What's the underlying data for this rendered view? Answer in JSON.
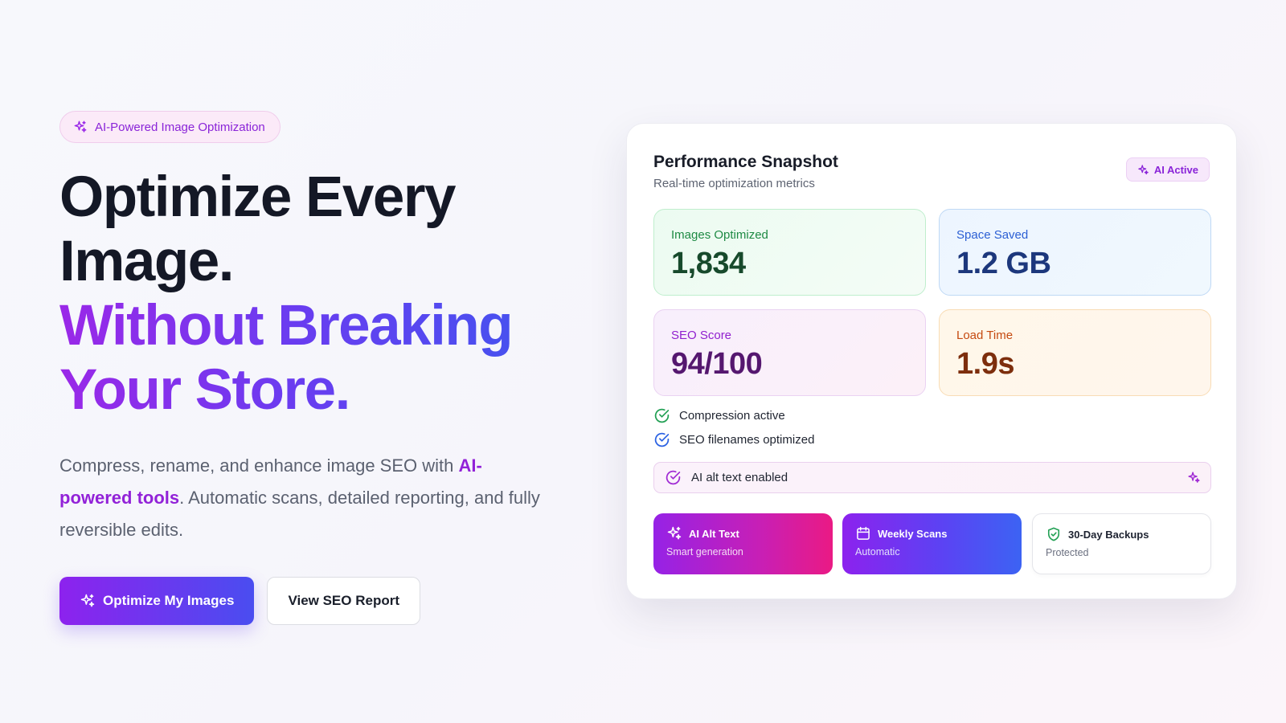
{
  "hero": {
    "badge_label": "AI-Powered Image Optimization",
    "headline_line1": "Optimize Every",
    "headline_line2": "Image.",
    "headline_line3": "Without Breaking",
    "headline_line4": "Your Store.",
    "subtext_before": "Compress, rename, and enhance image SEO with ",
    "subtext_highlight": "AI-powered tools",
    "subtext_after": ". Automatic scans, detailed reporting, and fully reversible edits.",
    "primary_button": "Optimize My Images",
    "secondary_button": "View SEO Report"
  },
  "snapshot": {
    "title": "Performance Snapshot",
    "subtitle": "Real-time optimization metrics",
    "status_badge": "AI Active",
    "metrics": [
      {
        "label": "Images Optimized",
        "value": "1,834"
      },
      {
        "label": "Space Saved",
        "value": "1.2 GB"
      },
      {
        "label": "SEO Score",
        "value": "94/100"
      },
      {
        "label": "Load Time",
        "value": "1.9s"
      }
    ],
    "checks": [
      {
        "label": "Compression active"
      },
      {
        "label": "SEO filenames optimized"
      },
      {
        "label": "AI alt text enabled"
      }
    ],
    "features": [
      {
        "title": "AI Alt Text",
        "subtitle": "Smart generation",
        "icon": "sparkles-icon"
      },
      {
        "title": "Weekly Scans",
        "subtitle": "Automatic",
        "icon": "calendar-icon"
      },
      {
        "title": "30-Day Backups",
        "subtitle": "Protected",
        "icon": "shield-check-icon"
      }
    ]
  },
  "colors": {
    "brand_purple": "#8d22ee",
    "brand_blue": "#4a4df0",
    "success_green": "#22a054",
    "info_blue": "#2b5fd4"
  }
}
